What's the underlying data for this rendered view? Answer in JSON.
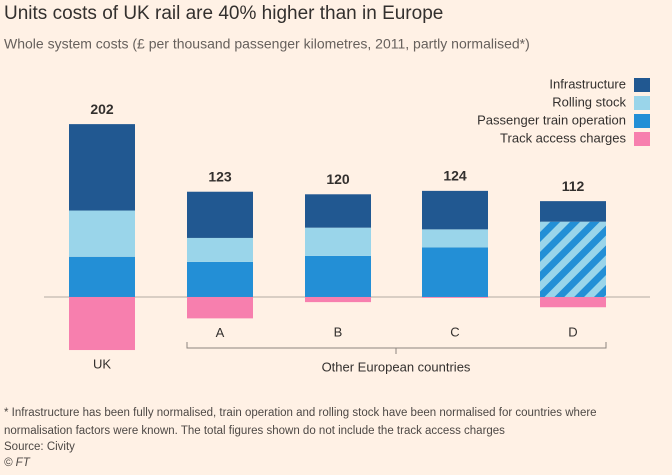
{
  "chart_data": {
    "type": "stacked_bar",
    "title": "Units costs of UK rail are 40% higher than in Europe",
    "subtitle": "Whole system costs (£ per thousand passenger kilometres, 2011, partly normalised*)",
    "categories": [
      "UK",
      "A",
      "B",
      "C",
      "D"
    ],
    "group_label": "Other European countries",
    "series": [
      {
        "name": "Infrastructure",
        "color": "#215891",
        "values": [
          101,
          54,
          39,
          45,
          24
        ]
      },
      {
        "name": "Rolling stock",
        "color": "#9ad5ea",
        "values": [
          54,
          28,
          33,
          21,
          null
        ]
      },
      {
        "name": "Passenger train operation",
        "color": "#238fd6",
        "values": [
          47,
          41,
          48,
          58,
          88
        ]
      },
      {
        "name": "Track access charges",
        "color": "#f77fae",
        "values": [
          -62,
          -25,
          -6,
          -1,
          -12
        ]
      }
    ],
    "totals": [
      202,
      123,
      120,
      124,
      112
    ],
    "striped": [
      4
    ],
    "ylim": [
      -65,
      215
    ],
    "legend": "top-right",
    "footnote": [
      "* Infrastructure has been fully normalised, train operation and rolling stock have been normalised for countries where",
      "normalisation factors were known. The total figures shown do not include the track access charges"
    ],
    "source": "Source: Civity",
    "credit": "© FT"
  }
}
